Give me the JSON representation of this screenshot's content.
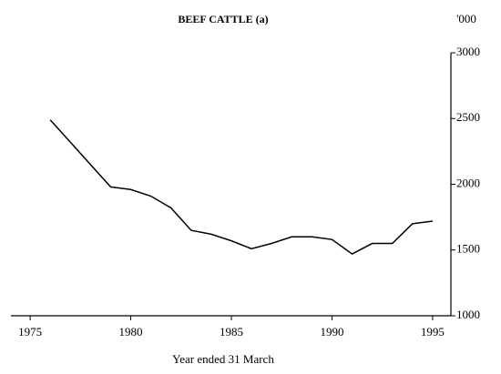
{
  "chart_data": {
    "type": "line",
    "title": "BEEF CATTLE (a)",
    "y_unit": "'000",
    "x_label": "Year ended 31 March",
    "x": [
      1976,
      1977,
      1978,
      1979,
      1980,
      1981,
      1982,
      1983,
      1984,
      1985,
      1986,
      1987,
      1988,
      1989,
      1990,
      1991,
      1992,
      1993,
      1994,
      1995
    ],
    "series": [
      {
        "name": "Beef cattle",
        "color": "#000000",
        "values": [
          2490,
          2320,
          2150,
          1980,
          1960,
          1910,
          1820,
          1650,
          1620,
          1570,
          1510,
          1550,
          1600,
          1600,
          1580,
          1470,
          1550,
          1550,
          1700,
          1720
        ]
      }
    ],
    "xlim": [
      1974,
      1996
    ],
    "xticks": [
      1975,
      1980,
      1985,
      1990,
      1995
    ],
    "ylim": [
      1000,
      3000
    ],
    "yticks": [
      1000,
      1500,
      2000,
      2500,
      3000
    ],
    "y_axis_side": "right",
    "grid": false
  }
}
